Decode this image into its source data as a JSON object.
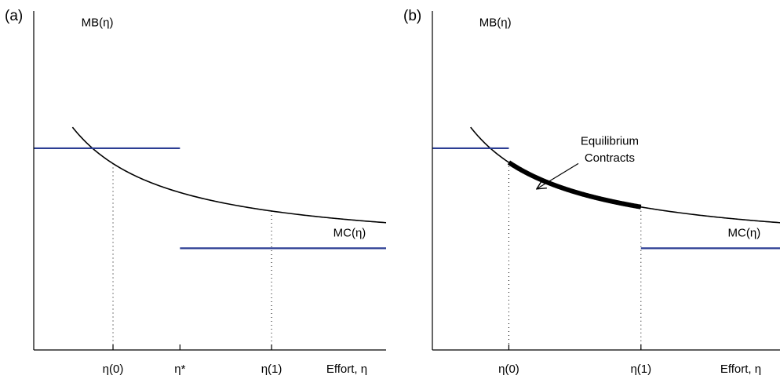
{
  "chart_data": [
    {
      "type": "line",
      "panel_label": "(a)",
      "xlabel": "Effort, η",
      "ylabel": "",
      "xlim": [
        0,
        10
      ],
      "ylim": [
        0,
        10
      ],
      "grid": false,
      "xticks": [
        {
          "x": 2.25,
          "label": "η(0)",
          "guide": true
        },
        {
          "x": 4.15,
          "label": "η*",
          "guide": false
        },
        {
          "x": 6.75,
          "label": "η(1)",
          "guide": true
        }
      ],
      "series": [
        {
          "name": "MB(η)",
          "color": "#000000",
          "width": 1.6,
          "fn": {
            "a": 10.5,
            "b": 1.73,
            "c": 2.86
          },
          "x_range": [
            1.1,
            10
          ]
        },
        {
          "name": "MC(η)",
          "color": "#2b3d93",
          "width": 2.2,
          "points": [
            [
              0,
              5.95
            ],
            [
              4.15,
              5.95
            ]
          ]
        },
        {
          "name": "",
          "color": "#2b3d93",
          "width": 2.2,
          "points": [
            [
              4.15,
              3.0
            ],
            [
              10,
              3.0
            ]
          ]
        }
      ],
      "annotations": [
        {
          "text": "MB(η)",
          "x": 1.35,
          "y": 9.55,
          "anchor": "start"
        },
        {
          "text": "MC(η)",
          "x": 8.5,
          "y": 3.35,
          "anchor": "start"
        }
      ]
    },
    {
      "type": "line",
      "panel_label": "(b)",
      "xlabel": "Effort, η",
      "ylabel": "",
      "xlim": [
        0,
        10
      ],
      "ylim": [
        0,
        10
      ],
      "grid": false,
      "xticks": [
        {
          "x": 2.2,
          "label": "η(0)",
          "guide": true
        },
        {
          "x": 6.0,
          "label": "η(1)",
          "guide": true
        }
      ],
      "series": [
        {
          "name": "MB(η)",
          "color": "#000000",
          "width": 1.6,
          "fn": {
            "a": 10.5,
            "b": 1.73,
            "c": 2.86
          },
          "x_range": [
            1.1,
            10
          ]
        },
        {
          "name": "Equilibrium Contracts",
          "color": "#000000",
          "width": 6,
          "fn": {
            "a": 10.5,
            "b": 1.73,
            "c": 2.86
          },
          "x_range": [
            2.2,
            6.0
          ]
        },
        {
          "name": "",
          "color": "#2b3d93",
          "width": 2.2,
          "points": [
            [
              0,
              5.95
            ],
            [
              2.2,
              5.95
            ]
          ]
        },
        {
          "name": "MC(η)",
          "color": "#2b3d93",
          "width": 2.2,
          "points": [
            [
              6.0,
              3.0
            ],
            [
              10,
              3.0
            ]
          ]
        }
      ],
      "annotations": [
        {
          "text": "MB(η)",
          "x": 1.35,
          "y": 9.55,
          "anchor": "start"
        },
        {
          "text": "MC(η)",
          "x": 8.5,
          "y": 3.35,
          "anchor": "start"
        },
        {
          "text": "Equilibrium",
          "x": 5.1,
          "y": 6.05,
          "anchor": "middle"
        },
        {
          "text": "Contracts",
          "x": 5.1,
          "y": 5.55,
          "anchor": "middle"
        }
      ],
      "arrow": {
        "from": [
          4.2,
          5.5
        ],
        "to": [
          3.0,
          4.75
        ]
      }
    }
  ]
}
